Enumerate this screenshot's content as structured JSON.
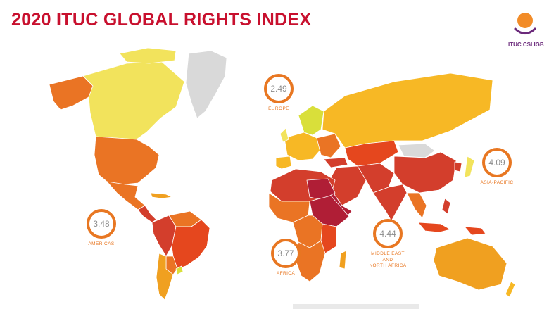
{
  "title": "2020 ITUC GLOBAL RIGHTS INDEX",
  "logo": {
    "text": "ITUC CSI IGB"
  },
  "regions": [
    {
      "score": "2.49",
      "label": "EUROPE"
    },
    {
      "score": "3.48",
      "label": "AMERICAS"
    },
    {
      "score": "3.77",
      "label": "AFRICA"
    },
    {
      "score": "4.44",
      "label": "MIDDLE EAST\nAND\nNORTH AFRICA"
    },
    {
      "score": "4.09",
      "label": "ASIA-PACIFIC"
    }
  ],
  "colors": {
    "title": "#c8102e",
    "ring": "#e87722",
    "ring_text": "#8c8c8c",
    "logo_orange": "#f28c28",
    "logo_purple": "#6b2a7b",
    "rating_1": "#f2e35c",
    "rating_2": "#d9df3a",
    "rating_3": "#f7b825",
    "rating_4": "#f0a020",
    "rating_5": "#ea7424",
    "rating_5_plus": "#e5471e",
    "rating_6": "#d33e2c",
    "rating_7": "#b01e36",
    "no_data": "#d9d9d9"
  }
}
